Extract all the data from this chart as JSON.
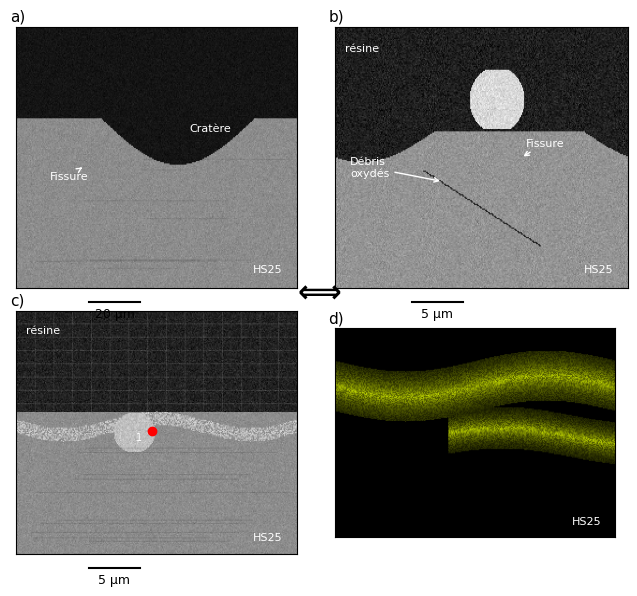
{
  "figure_width": 6.37,
  "figure_height": 5.79,
  "bg_color": "#ffffff",
  "panel_positions": {
    "a": [
      0.02,
      0.5,
      0.44,
      0.45
    ],
    "b": [
      0.52,
      0.5,
      0.46,
      0.45
    ],
    "c": [
      0.02,
      0.04,
      0.44,
      0.42
    ],
    "d": [
      0.52,
      0.07,
      0.44,
      0.36
    ]
  },
  "labels": {
    "a": "a)",
    "b": "b)",
    "c": "c)",
    "d": "d)"
  },
  "scale_texts": {
    "a": "20 µm",
    "b": "5 µm",
    "c": "5 µm"
  },
  "watermark": "HS25",
  "arrow_left": "←",
  "arrow_right": "→"
}
